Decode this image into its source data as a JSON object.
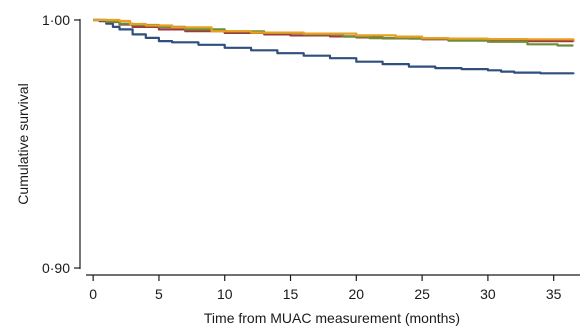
{
  "chart_data": {
    "type": "line",
    "xlabel": "Time from MUAC measurement (months)",
    "ylabel": "Cumulative survival",
    "xlim": [
      -1,
      37
    ],
    "ylim": [
      0.9,
      1.0
    ],
    "x_ticks": [
      0,
      5,
      10,
      15,
      20,
      25,
      30,
      35
    ],
    "y_ticks": [
      {
        "value": 0.9,
        "label": "0·90"
      },
      {
        "value": 1.0,
        "label": "1·00"
      }
    ],
    "grid": false,
    "legend": "none",
    "line_style": "step",
    "series": [
      {
        "color": "#2f4f7f",
        "x": [
          0,
          0.5,
          1,
          1.5,
          2,
          3,
          4,
          5,
          6,
          8,
          10,
          12,
          14,
          16,
          18,
          20,
          22,
          24,
          26,
          28,
          30,
          31,
          32,
          34,
          36.5
        ],
        "y": [
          1.0,
          0.9995,
          0.9985,
          0.9972,
          0.9962,
          0.9942,
          0.9928,
          0.9915,
          0.991,
          0.99,
          0.9888,
          0.9878,
          0.9866,
          0.9856,
          0.9846,
          0.9832,
          0.9822,
          0.9812,
          0.9806,
          0.9802,
          0.9797,
          0.9792,
          0.9788,
          0.9785,
          0.9782
        ]
      },
      {
        "color": "#9e3a3f",
        "x": [
          0,
          1,
          2,
          3,
          5,
          7,
          10,
          13,
          15,
          18,
          20,
          22,
          25,
          28,
          30,
          33,
          36.5
        ],
        "y": [
          1.0,
          0.9992,
          0.9982,
          0.9972,
          0.9962,
          0.9955,
          0.9948,
          0.9942,
          0.9938,
          0.9934,
          0.993,
          0.9926,
          0.9922,
          0.9919,
          0.9917,
          0.9915,
          0.9913
        ]
      },
      {
        "color": "#6b8e3a",
        "x": [
          0,
          1,
          2,
          3,
          5,
          7,
          10,
          13,
          16,
          19,
          21,
          24,
          27,
          30,
          33,
          35.3,
          36.5
        ],
        "y": [
          1.0,
          0.9993,
          0.9985,
          0.998,
          0.9972,
          0.9962,
          0.9954,
          0.9948,
          0.9943,
          0.9933,
          0.9927,
          0.9925,
          0.9917,
          0.9912,
          0.9902,
          0.9897,
          0.9897
        ]
      },
      {
        "color": "#e8a020",
        "x": [
          0,
          2,
          2.8,
          4,
          6,
          9,
          12,
          16,
          20,
          23,
          25,
          27,
          30,
          33,
          36.5
        ],
        "y": [
          1.0,
          0.9996,
          0.9984,
          0.9978,
          0.997,
          0.9955,
          0.9949,
          0.9945,
          0.9938,
          0.9933,
          0.9927,
          0.9925,
          0.9923,
          0.9922,
          0.9917
        ]
      }
    ]
  }
}
